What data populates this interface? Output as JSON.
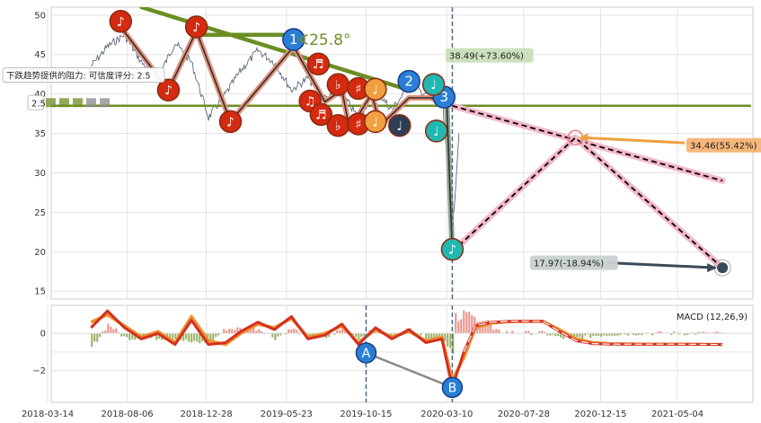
{
  "chart_data": [
    {
      "type": "line",
      "panel": "price",
      "ylim": [
        14,
        51
      ],
      "y_ticks": [
        15,
        20,
        25,
        30,
        35,
        40,
        45,
        50
      ],
      "x_tick_labels": [
        "2018-03-14",
        "2018-08-06",
        "2018-12-28",
        "2019-05-23",
        "2019-10-15",
        "2020-03-10",
        "2020-07-28",
        "2020-12-15",
        "2021-05-04"
      ],
      "grid": true,
      "series": [
        {
          "role": "price",
          "color": "#4a5a6a",
          "x": [
            "2018-06-01",
            "2018-07-01",
            "2018-08-01",
            "2018-09-01",
            "2018-10-01",
            "2018-11-01",
            "2018-12-01",
            "2019-01-01",
            "2019-02-01",
            "2019-03-01",
            "2019-04-01",
            "2019-05-01",
            "2019-06-01",
            "2019-07-01",
            "2019-08-01",
            "2019-09-01",
            "2019-10-01",
            "2019-11-01",
            "2019-12-01",
            "2020-01-01",
            "2020-02-01",
            "2020-03-01",
            "2020-03-20",
            "2020-04-01"
          ],
          "y": [
            43.5,
            46,
            47.5,
            44,
            42,
            46.5,
            44,
            37,
            40,
            43,
            45.5,
            44,
            40.5,
            42,
            39.5,
            40,
            37,
            40.5,
            38,
            41,
            40,
            40,
            22,
            35
          ]
        },
        {
          "role": "zigzag",
          "color": "#e0907a",
          "x": [
            "2018-07-25",
            "2018-10-20",
            "2018-12-10",
            "2019-02-10",
            "2019-06-05",
            "2019-07-20",
            "2019-08-01",
            "2019-09-01",
            "2019-09-15",
            "2019-10-25",
            "2019-11-10",
            "2019-12-10",
            "2020-01-01",
            "2020-02-10",
            "2020-03-10",
            "2020-03-20"
          ],
          "y": [
            48.5,
            40.5,
            48,
            36.5,
            46,
            40.5,
            39,
            40.5,
            35.5,
            40,
            36,
            38,
            39.5,
            39.5,
            38.7,
            20
          ]
        },
        {
          "role": "trendline",
          "color": "#6b8e23",
          "x": [
            "2018-09-01",
            "2020-01-01"
          ],
          "y": [
            51,
            40.5
          ]
        },
        {
          "role": "support",
          "color": "#6b8e23",
          "x": [
            "2018-03-01",
            "2021-09-15"
          ],
          "y": [
            38.5,
            38.5
          ]
        },
        {
          "role": "projection",
          "color": "#000000",
          "x": [
            "2020-03-20",
            "2020-10-30",
            "2021-07-25"
          ],
          "y": [
            20,
            34.46,
            17.97
          ]
        },
        {
          "role": "projection-trend",
          "color": "#000000",
          "x": [
            "2020-03-20",
            "2021-07-25"
          ],
          "y": [
            38.5,
            29
          ]
        }
      ],
      "markers": [
        {
          "label": "1",
          "x": "2019-06-05",
          "y": 46.9,
          "color": "#2a7fd4"
        },
        {
          "label": "2",
          "x": "2020-01-01",
          "y": 41.6,
          "color": "#2a7fd4"
        },
        {
          "label": "3",
          "x": "2020-03-05",
          "y": 39.6,
          "color": "#2a7fd4"
        },
        {
          "label": "♪",
          "x": "2018-07-25",
          "y": 49.2,
          "color": "#d42a10"
        },
        {
          "label": "♪",
          "x": "2018-10-20",
          "y": 40.5,
          "color": "#d42a10"
        },
        {
          "label": "♪",
          "x": "2018-12-10",
          "y": 48.5,
          "color": "#d42a10"
        },
        {
          "label": "♪",
          "x": "2019-02-10",
          "y": 36.5,
          "color": "#d42a10"
        },
        {
          "label": "♬",
          "x": "2019-07-20",
          "y": 43.8,
          "color": "#d42a10"
        },
        {
          "label": "♫",
          "x": "2019-07-05",
          "y": 39.1,
          "color": "#d42a10"
        },
        {
          "label": "♬",
          "x": "2019-07-25",
          "y": 37.4,
          "color": "#d42a10"
        },
        {
          "label": "♭",
          "x": "2019-08-25",
          "y": 41.2,
          "color": "#d42a10"
        },
        {
          "label": "♭",
          "x": "2019-08-25",
          "y": 36,
          "color": "#d42a10"
        },
        {
          "label": "♯",
          "x": "2019-10-01",
          "y": 40.7,
          "color": "#d42a10"
        },
        {
          "label": "♯",
          "x": "2019-10-01",
          "y": 36.2,
          "color": "#d42a10"
        },
        {
          "label": "♩",
          "x": "2019-11-01",
          "y": 40.6,
          "color": "#f0a040"
        },
        {
          "label": "♩",
          "x": "2019-11-01",
          "y": 36.5,
          "color": "#f0a040"
        },
        {
          "label": "♩",
          "x": "2019-12-15",
          "y": 36,
          "color": "#2b3e55"
        },
        {
          "label": "♩",
          "x": "2020-02-15",
          "y": 41.2,
          "color": "#20b8b0"
        },
        {
          "label": "♩",
          "x": "2020-02-20",
          "y": 35.3,
          "color": "#20b8b0"
        },
        {
          "label": "♪",
          "x": "2020-03-20",
          "y": 20.3,
          "color": "#20b8b0"
        }
      ],
      "annotations": [
        {
          "text": "38.49(+73.60%)",
          "x": "2020-05-20",
          "y": 44.9,
          "bg": "#c8dfb8"
        },
        {
          "text": "34.46(55.42%)",
          "x": "2021-08-30",
          "y": 33.5,
          "bg": "#f6b373"
        },
        {
          "text": "17.97(-18.94%)",
          "x": "2020-10-10",
          "y": 18.6,
          "bg": "#c8d0d0"
        },
        {
          "text": "下跌趋势提供的阻力: 可信度评分: 2.5",
          "x": "2018-04-01",
          "y": 42.4,
          "bg": "#ffffff"
        },
        {
          "text": "2.5",
          "x": "2018-03-01",
          "y": 38.9,
          "bg": "#ffffff"
        },
        {
          "text": "∢25.8°",
          "x": "2019-06-10",
          "y": 46.9,
          "bg": "none"
        }
      ],
      "vline_date": "2020-03-20"
    },
    {
      "type": "line",
      "panel": "macd",
      "title": "MACD (12,26,9)",
      "ylim": [
        -3.7,
        1.5
      ],
      "y_ticks": [
        0,
        -1,
        -2
      ],
      "y_tick_labels": [
        "0",
        "",
        "−2"
      ],
      "series": [
        {
          "role": "macd",
          "color": "#d43020",
          "x": [
            "2018-06-01",
            "2018-07-01",
            "2018-08-01",
            "2018-09-01",
            "2018-10-01",
            "2018-11-01",
            "2018-12-01",
            "2019-01-01",
            "2019-02-01",
            "2019-03-01",
            "2019-04-01",
            "2019-05-01",
            "2019-06-01",
            "2019-07-01",
            "2019-08-01",
            "2019-09-01",
            "2019-10-01",
            "2019-11-01",
            "2019-12-01",
            "2020-01-01",
            "2020-02-01",
            "2020-03-01",
            "2020-03-20",
            "2020-04-10",
            "2020-05-01",
            "2020-06-01",
            "2020-07-01",
            "2020-08-01",
            "2020-09-01",
            "2020-10-01",
            "2020-11-01",
            "2020-12-01",
            "2021-01-01",
            "2021-03-01",
            "2021-05-01",
            "2021-07-25"
          ],
          "y": [
            0.3,
            1.2,
            0.3,
            -0.3,
            0,
            -0.6,
            0.7,
            -0.6,
            -0.5,
            0.1,
            0.6,
            0.2,
            0.9,
            -0.3,
            -0.1,
            0.5,
            -0.6,
            0.3,
            -0.3,
            0.2,
            -0.5,
            -0.3,
            -2.9,
            -1.0,
            0.4,
            0.6,
            0.65,
            0.65,
            0.65,
            0.1,
            -0.4,
            -0.55,
            -0.58,
            -0.58,
            -0.58,
            -0.6
          ]
        },
        {
          "role": "signal",
          "color": "#f09030",
          "x": [
            "2018-06-01",
            "2018-07-01",
            "2018-08-01",
            "2018-09-01",
            "2018-10-01",
            "2018-11-01",
            "2018-12-01",
            "2019-01-01",
            "2019-02-01",
            "2019-03-01",
            "2019-04-01",
            "2019-05-01",
            "2019-06-01",
            "2019-07-01",
            "2019-08-01",
            "2019-09-01",
            "2019-10-01",
            "2019-11-01",
            "2019-12-01",
            "2020-01-01",
            "2020-02-01",
            "2020-03-01",
            "2020-03-20",
            "2020-04-10",
            "2020-05-01",
            "2020-06-01",
            "2020-07-01",
            "2020-08-01",
            "2020-09-01",
            "2020-10-01",
            "2020-11-01",
            "2020-12-01",
            "2021-01-01",
            "2021-03-01",
            "2021-05-01",
            "2021-07-25"
          ],
          "y": [
            0.6,
            1.0,
            0.4,
            -0.2,
            0.1,
            -0.5,
            0.9,
            -0.4,
            -0.6,
            0.0,
            0.5,
            0.3,
            0.8,
            -0.2,
            0.0,
            0.4,
            -0.5,
            0.2,
            -0.2,
            0.1,
            -0.4,
            -0.2,
            -2.5,
            -1.3,
            0.3,
            0.55,
            0.62,
            0.64,
            0.64,
            0.2,
            -0.3,
            -0.5,
            -0.56,
            -0.58,
            -0.58,
            -0.6
          ]
        },
        {
          "role": "divergence",
          "color": "#888888",
          "x": [
            "2019-10-15",
            "2020-03-20"
          ],
          "y": [
            -1.05,
            -2.9
          ]
        }
      ],
      "histogram_color_pos": "#e06050",
      "histogram_color_neg": "#6b8e23",
      "markers": [
        {
          "label": "A",
          "x": "2019-10-15",
          "y": -1.05,
          "color": "#2a7fd4"
        },
        {
          "label": "B",
          "x": "2020-03-20",
          "y": -2.9,
          "color": "#2a7fd4"
        }
      ],
      "vline_dates": [
        "2019-10-15",
        "2020-03-20"
      ]
    }
  ]
}
